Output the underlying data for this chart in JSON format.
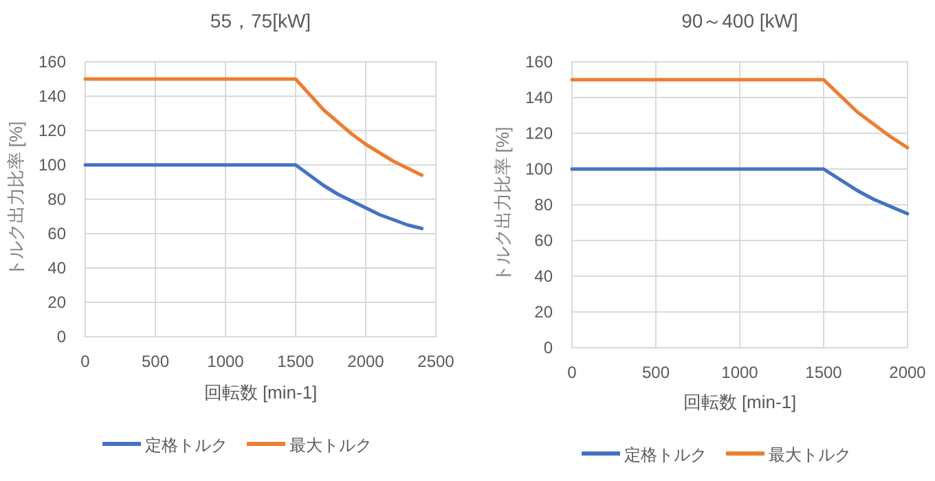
{
  "chart_data": [
    {
      "type": "line",
      "title": "55，75[kW]",
      "xlabel": "回転数 [min-1]",
      "ylabel": "トルク出力比率 [%]",
      "xlim": [
        0,
        2500
      ],
      "xticks": [
        0,
        500,
        1000,
        1500,
        2000,
        2500
      ],
      "ylim": [
        0,
        160
      ],
      "yticks": [
        0,
        20,
        40,
        60,
        80,
        100,
        120,
        140,
        160
      ],
      "grid": true,
      "legend": "bottom",
      "marker": "none",
      "series": [
        {
          "name": "定格トルク",
          "color": "#4472c4",
          "x": [
            0,
            1500,
            1600,
            1700,
            1800,
            1900,
            2000,
            2100,
            2200,
            2300,
            2400
          ],
          "values": [
            100,
            100,
            94,
            88,
            83,
            79,
            75,
            71,
            68,
            65,
            63
          ]
        },
        {
          "name": "最大トルク",
          "color": "#ed7d31",
          "x": [
            0,
            1500,
            1600,
            1700,
            1800,
            1900,
            2000,
            2100,
            2200,
            2300,
            2400
          ],
          "values": [
            150,
            150,
            141,
            132,
            125,
            118,
            112,
            107,
            102,
            98,
            94
          ]
        }
      ]
    },
    {
      "type": "line",
      "title": "90～400 [kW]",
      "xlabel": "回転数 [min-1]",
      "ylabel": "トルク出力比率 [%]",
      "xlim": [
        0,
        2000
      ],
      "xticks": [
        0,
        500,
        1000,
        1500,
        2000
      ],
      "ylim": [
        0,
        160
      ],
      "yticks": [
        0,
        20,
        40,
        60,
        80,
        100,
        120,
        140,
        160
      ],
      "grid": true,
      "legend": "bottom",
      "marker": "none",
      "series": [
        {
          "name": "定格トルク",
          "color": "#4472c4",
          "x": [
            0,
            1500,
            1600,
            1700,
            1800,
            1900,
            2000
          ],
          "values": [
            100,
            100,
            94,
            88,
            83,
            79,
            75
          ]
        },
        {
          "name": "最大トルク",
          "color": "#ed7d31",
          "x": [
            0,
            1500,
            1600,
            1700,
            1800,
            1900,
            2000
          ],
          "values": [
            150,
            150,
            141,
            132,
            125,
            118,
            112
          ]
        }
      ]
    }
  ]
}
